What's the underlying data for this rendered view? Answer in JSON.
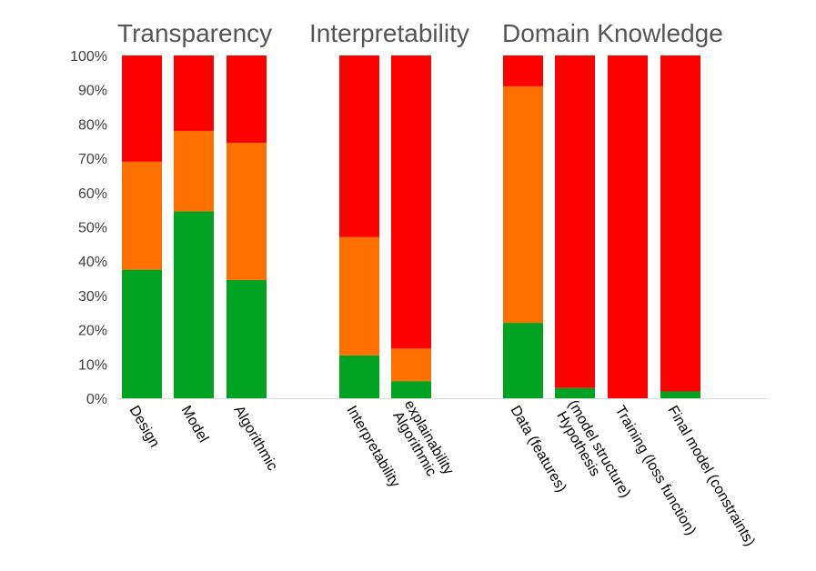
{
  "chart_data": {
    "type": "bar",
    "stacked": true,
    "percent": true,
    "ylim": [
      0,
      100
    ],
    "y_ticks": [
      "0%",
      "10%",
      "20%",
      "30%",
      "40%",
      "50%",
      "60%",
      "70%",
      "80%",
      "90%",
      "100%"
    ],
    "grid": false,
    "legend": "none",
    "colors": {
      "green": "#00a321",
      "orange": "#ff7000",
      "red": "#ff0000"
    },
    "groups": [
      {
        "title": "Transparency",
        "categories": [
          "Design",
          "Model",
          "Algorithmic"
        ]
      },
      {
        "title": "Interpretability",
        "categories": [
          "Interpretability",
          "Algorithmic explainability"
        ]
      },
      {
        "title": "Domain Knowledge",
        "categories": [
          "Data (features)",
          "Hypothesis (model structure)",
          "Training (loss function)",
          "Final model (constraints)"
        ]
      }
    ],
    "categories": [
      "Design",
      "Model",
      "Algorithmic",
      "Interpretability",
      "Algorithmic explainability",
      "Data (features)",
      "Hypothesis (model structure)",
      "Training (loss function)",
      "Final model (constraints)"
    ],
    "category_lines": [
      [
        "Design"
      ],
      [
        "Model"
      ],
      [
        "Algorithmic"
      ],
      [
        "Interpretability"
      ],
      [
        "Algorithmic",
        "explainability"
      ],
      [
        "Data (features)"
      ],
      [
        "Hypothesis",
        "(model structure)"
      ],
      [
        "Training (loss function)"
      ],
      [
        "Final model (constraints)"
      ]
    ],
    "series": [
      {
        "color_key": "green",
        "values": [
          37.5,
          54.5,
          34.5,
          12.5,
          5,
          22,
          3,
          0,
          2
        ]
      },
      {
        "color_key": "orange",
        "values": [
          31.5,
          23.5,
          40,
          34.5,
          9.5,
          69,
          0,
          0,
          0
        ]
      },
      {
        "color_key": "red",
        "values": [
          31,
          22,
          25.5,
          53,
          85.5,
          9,
          97,
          100,
          98
        ]
      }
    ]
  }
}
